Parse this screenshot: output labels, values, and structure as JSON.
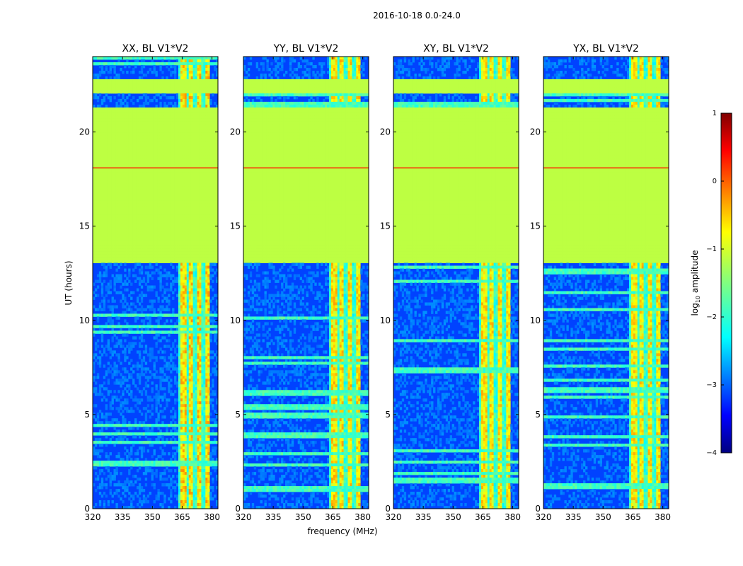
{
  "chart_data": {
    "type": "heatmap",
    "title": "2016-10-18 0.0-24.0",
    "xlabel": "frequency (MHz)",
    "ylabel": "UT (hours)",
    "xlim": [
      320,
      383
    ],
    "ylim": [
      0,
      24
    ],
    "xticks": [
      "320",
      "335",
      "350",
      "365",
      "380"
    ],
    "xtick_values": [
      320,
      335,
      350,
      365,
      380
    ],
    "yticks": [
      "0",
      "5",
      "10",
      "15",
      "20"
    ],
    "ytick_values": [
      0,
      5,
      10,
      15,
      20
    ],
    "panels": [
      {
        "title": "XX, BL V1*V2",
        "band_strength": 1.0
      },
      {
        "title": "YY, BL V1*V2",
        "band_strength": 0.85
      },
      {
        "title": "XY, BL V1*V2",
        "band_strength": 0.8
      },
      {
        "title": "YX, BL V1*V2",
        "band_strength": 0.8
      }
    ],
    "flagged_hours": [
      [
        13.1,
        21.3
      ],
      [
        22.1,
        22.8
      ]
    ],
    "rfi_band_mhz": [
      363,
      379
    ],
    "colorbar": {
      "label": "log10 amplitude",
      "label_main": "log",
      "label_sub": "10",
      "label_rest": " amplitude",
      "min": -4,
      "max": 1,
      "ticks": [
        "1",
        "0",
        "−1",
        "−2",
        "−3",
        "−4"
      ],
      "tick_values": [
        1,
        0,
        -1,
        -2,
        -3,
        -4
      ]
    }
  }
}
